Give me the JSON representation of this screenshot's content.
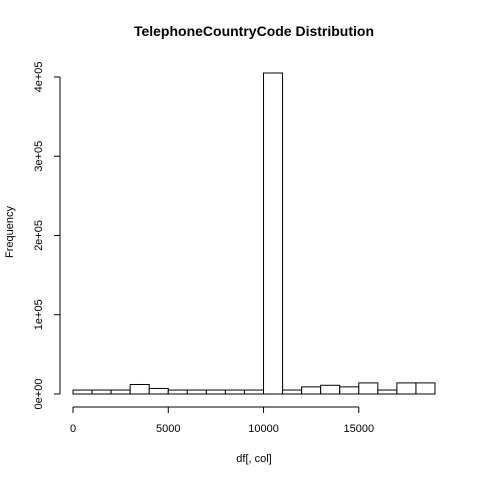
{
  "chart_data": {
    "type": "bar",
    "title": "TelephoneCountryCode  Distribution",
    "xlabel": "df[, col]",
    "ylabel": "Frequency",
    "x_ticks": [
      0,
      5000,
      10000,
      15000
    ],
    "x_tick_labels": [
      "0",
      "5000",
      "10000",
      "15000"
    ],
    "y_ticks": [
      0,
      100000,
      200000,
      300000,
      400000
    ],
    "y_tick_labels": [
      "0e+00",
      "1e+05",
      "2e+05",
      "3e+05",
      "4e+05"
    ],
    "xlim": [
      0,
      19000
    ],
    "ylim": [
      0,
      405000
    ],
    "grid": false,
    "legend": "none",
    "bins": [
      {
        "x0": 0,
        "x1": 1000,
        "value": 5000
      },
      {
        "x0": 1000,
        "x1": 2000,
        "value": 5000
      },
      {
        "x0": 2000,
        "x1": 3000,
        "value": 5000
      },
      {
        "x0": 3000,
        "x1": 4000,
        "value": 12000
      },
      {
        "x0": 4000,
        "x1": 5000,
        "value": 7000
      },
      {
        "x0": 5000,
        "x1": 6000,
        "value": 5000
      },
      {
        "x0": 6000,
        "x1": 7000,
        "value": 5000
      },
      {
        "x0": 7000,
        "x1": 8000,
        "value": 5000
      },
      {
        "x0": 8000,
        "x1": 9000,
        "value": 5000
      },
      {
        "x0": 9000,
        "x1": 10000,
        "value": 5000
      },
      {
        "x0": 10000,
        "x1": 11000,
        "value": 405000
      },
      {
        "x0": 11000,
        "x1": 12000,
        "value": 5000
      },
      {
        "x0": 12000,
        "x1": 13000,
        "value": 9000
      },
      {
        "x0": 13000,
        "x1": 14000,
        "value": 11000
      },
      {
        "x0": 14000,
        "x1": 15000,
        "value": 9000
      },
      {
        "x0": 15000,
        "x1": 16000,
        "value": 14000
      },
      {
        "x0": 16000,
        "x1": 17000,
        "value": 5000
      },
      {
        "x0": 17000,
        "x1": 18000,
        "value": 14000
      },
      {
        "x0": 18000,
        "x1": 19000,
        "value": 14000
      }
    ]
  }
}
